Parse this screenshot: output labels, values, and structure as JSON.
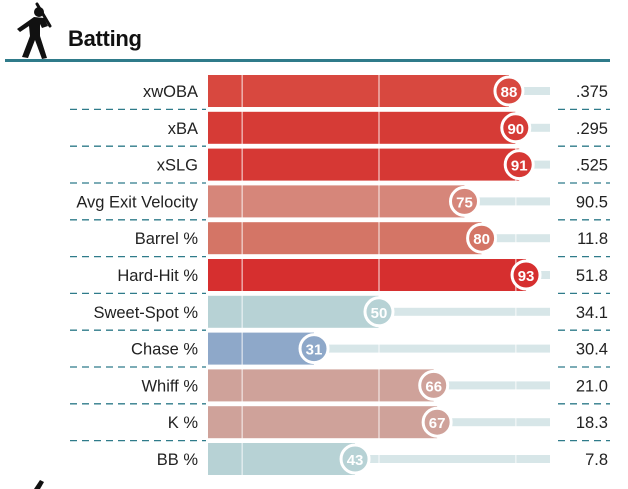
{
  "section": {
    "title": "Batting",
    "icon": "batter-silhouette-icon"
  },
  "chart_data": {
    "type": "bar",
    "orientation": "horizontal",
    "xlim": [
      0,
      100
    ],
    "reference_lines": [
      10,
      50,
      90
    ],
    "metrics": [
      {
        "label": "xwOBA",
        "percentile": 88,
        "value": ".375",
        "color": "#d8483f"
      },
      {
        "label": "xBA",
        "percentile": 90,
        "value": ".295",
        "color": "#d63b36"
      },
      {
        "label": "xSLG",
        "percentile": 91,
        "value": ".525",
        "color": "#d63834"
      },
      {
        "label": "Avg Exit Velocity",
        "percentile": 75,
        "value": "90.5",
        "color": "#d6867a"
      },
      {
        "label": "Barrel %",
        "percentile": 80,
        "value": "11.8",
        "color": "#d47566"
      },
      {
        "label": "Hard-Hit %",
        "percentile": 93,
        "value": "51.8",
        "color": "#d62f2f"
      },
      {
        "label": "Sweet-Spot %",
        "percentile": 50,
        "value": "34.1",
        "color": "#b7d2d5"
      },
      {
        "label": "Chase %",
        "percentile": 31,
        "value": "30.4",
        "color": "#8ea8c9"
      },
      {
        "label": "Whiff %",
        "percentile": 66,
        "value": "21.0",
        "color": "#cfa29a"
      },
      {
        "label": "K %",
        "percentile": 67,
        "value": "18.3",
        "color": "#cfa29a"
      },
      {
        "label": "BB %",
        "percentile": 43,
        "value": "7.8",
        "color": "#b7d2d5"
      }
    ]
  },
  "colors": {
    "track": "#d7e6e8",
    "divider": "#2f7b8a",
    "label": "#222222"
  }
}
